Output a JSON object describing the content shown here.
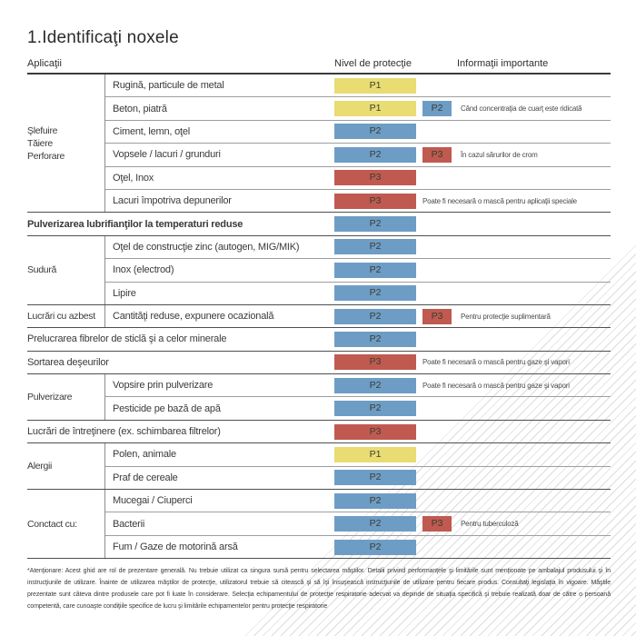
{
  "page": {
    "title": "1.Identificaţi noxele",
    "footnote": "*Atenţionare: Acest ghid are rol de prezentare generală. Nu trebuie utilizat ca singura sursă pentru selectarea măştilor. Detalii privind performanţele şi limitările sunt menţionate pe ambalajul produsului şi în instrucţiunile de utilizare. Înainte de utilizarea măştilor de protecţie, utilizatorul trebuie să citească şi să îşi însuşească instrucţiunile de utilizare pentru fiecare produs. Consultaţi legislaţia în vigoare. Măştile prezentate sunt câteva dintre produsele care pot fi luate în considerare. Selecţia echipamentului de protecţie respiratorie adecvat va depinde de situaţia specifică şi trebuie realizată doar de către o persoană competentă, care cunoaşte condiţiile specifice de lucru şi limitările echipamentelor pentru protecţie respiratorie"
  },
  "header": {
    "applications": "Aplicaţii",
    "protection": "Nivel de protecţie",
    "info": "Informaţii importante"
  },
  "levels": {
    "P1": "#e8dc73",
    "P2": "#6d9dc5",
    "P3": "#c05a50"
  },
  "blocks": [
    {
      "category": "Şlefuire\nTăiere\nPerforare",
      "rows": [
        {
          "label": "Rugină, particule de metal",
          "badge": "P1"
        },
        {
          "label": "Beton, piatră",
          "badge": "P1",
          "badge2": "P2",
          "note": "Când concentraţia de cuarţ este ridicată"
        },
        {
          "label": "Ciment, lemn, oţel",
          "badge": "P2"
        },
        {
          "label": "Vopsele / lacuri / grunduri",
          "badge": "P2",
          "badge2": "P3",
          "note": "În cazul sărurilor de crom"
        },
        {
          "label": "Oţel, Inox",
          "badge": "P3"
        },
        {
          "label": "Lacuri împotriva depunerilor",
          "badge": "P3",
          "note": "Poate fi necesară o mască pentru aplicaţii speciale"
        }
      ]
    },
    {
      "rows": [
        {
          "label": "Pulverizarea lubrifianţilor la temperaturi reduse",
          "badge": "P2",
          "bold": true
        }
      ]
    },
    {
      "category": "Sudură",
      "rows": [
        {
          "label": "Oţel de construcţie zinc (autogen, MIG/MIK)",
          "badge": "P2"
        },
        {
          "label": "Inox (electrod)",
          "badge": "P2"
        },
        {
          "label": "Lipire",
          "badge": "P2"
        }
      ]
    },
    {
      "category": "Lucrări cu azbest",
      "rows": [
        {
          "label": "Cantităţi reduse, expunere ocazională",
          "badge": "P2",
          "badge2": "P3",
          "note": "Pentru protecţie suplimentară"
        }
      ]
    },
    {
      "rows": [
        {
          "label": "Prelucrarea fibrelor de sticlă şi a celor minerale",
          "badge": "P2"
        }
      ]
    },
    {
      "rows": [
        {
          "label": "Sortarea deşeurilor",
          "badge": "P3",
          "note": "Poate fi necesară o mască pentru gaze şi vapori"
        }
      ]
    },
    {
      "category": "Pulverizare",
      "rows": [
        {
          "label": "Vopsire prin pulverizare",
          "badge": "P2",
          "note": "Poate fi necesară o mască pentru gaze şi vapori"
        },
        {
          "label": "Pesticide pe bază de apă",
          "badge": "P2"
        }
      ]
    },
    {
      "rows": [
        {
          "label": "Lucrări de întreţinere (ex. schimbarea filtrelor)",
          "badge": "P3"
        }
      ]
    },
    {
      "category": "Alergii",
      "rows": [
        {
          "label": "Polen, animale",
          "badge": "P1"
        },
        {
          "label": "Praf de cereale",
          "badge": "P2"
        }
      ]
    },
    {
      "category": "Conctact cu:",
      "rows": [
        {
          "label": "Mucegai / Ciuperci",
          "badge": "P2"
        },
        {
          "label": "Bacterii",
          "badge": "P2",
          "badge2": "P3",
          "note": "Pentru tuberculoză"
        },
        {
          "label": "Fum / Gaze de motorină arsă",
          "badge": "P2"
        }
      ]
    }
  ]
}
